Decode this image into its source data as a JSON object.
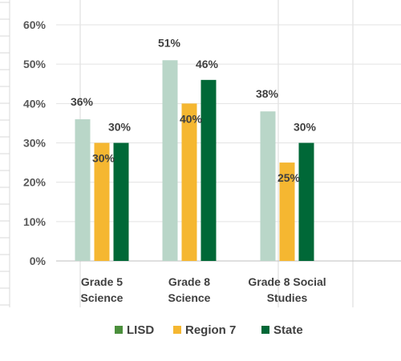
{
  "chart_data": {
    "type": "bar",
    "categories": [
      [
        "Grade 5",
        "Science"
      ],
      [
        "Grade 8",
        "Science"
      ],
      [
        "Grade 8 Social",
        "Studies"
      ]
    ],
    "series": [
      {
        "name": "LISD",
        "values": [
          36,
          51,
          38
        ],
        "labels": [
          "36%",
          "51%",
          "38%"
        ],
        "color": "#b9d6c8",
        "legend_color": "#4b8f3c"
      },
      {
        "name": "Region 7",
        "values": [
          30,
          40,
          25
        ],
        "labels": [
          "30%",
          "40%",
          "25%"
        ],
        "color": "#f5b731"
      },
      {
        "name": "State",
        "values": [
          30,
          46,
          30
        ],
        "labels": [
          "30%",
          "46%",
          "30%"
        ],
        "color": "#006837"
      }
    ],
    "ylim": [
      0,
      60
    ],
    "yticks": [
      "0%",
      "10%",
      "20%",
      "30%",
      "40%",
      "50%",
      "60%"
    ],
    "grid": true,
    "legend": "bottom"
  }
}
